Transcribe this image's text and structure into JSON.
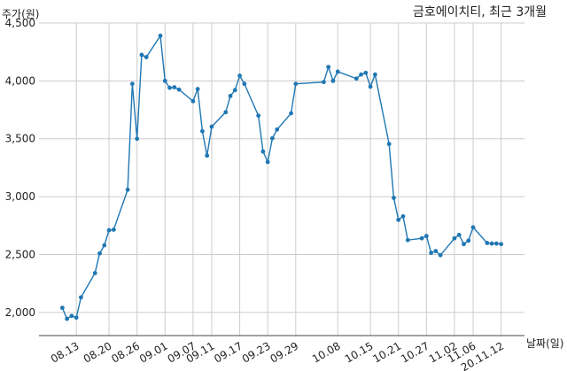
{
  "colors": {
    "line": "#1f77b4",
    "grid": "#cccccc",
    "axis": "#444444",
    "text": "#222222"
  },
  "chart_data": {
    "type": "line",
    "title": "금호에이치티, 최근 3개월",
    "ylabel": "주가(원)",
    "xlabel": "날짜(일)",
    "ylim": [
      1800,
      4500
    ],
    "y_ticks": [
      2000,
      2500,
      3000,
      3500,
      4000,
      4500
    ],
    "y_tick_labels": [
      "2,000",
      "2,500",
      "3,000",
      "3,500",
      "4,000",
      "4,500"
    ],
    "x_ticks": [
      "2020-08-13",
      "2020-08-20",
      "2020-08-26",
      "2020-09-01",
      "2020-09-07",
      "2020-09-11",
      "2020-09-17",
      "2020-09-23",
      "2020-09-29",
      "2020-10-08",
      "2020-10-15",
      "2020-10-21",
      "2020-10-27",
      "2020-11-02",
      "2020-11-06",
      "2020-11-12"
    ],
    "x_tick_labels": [
      "08.13",
      "08.20",
      "08.26",
      "09.01",
      "09.07",
      "09.11",
      "09.17",
      "09.23",
      "09.29",
      "10.08",
      "10.15",
      "10.21",
      "10.27",
      "11.02",
      "11.06",
      "20.11.12"
    ],
    "grid": true,
    "series": [
      {
        "x": [
          "2020-08-10",
          "2020-08-11",
          "2020-08-12",
          "2020-08-13",
          "2020-08-14",
          "2020-08-17",
          "2020-08-18",
          "2020-08-19",
          "2020-08-20",
          "2020-08-21",
          "2020-08-24",
          "2020-08-25",
          "2020-08-26",
          "2020-08-27",
          "2020-08-28",
          "2020-08-31",
          "2020-09-01",
          "2020-09-02",
          "2020-09-03",
          "2020-09-04",
          "2020-09-07",
          "2020-09-08",
          "2020-09-09",
          "2020-09-10",
          "2020-09-11",
          "2020-09-14",
          "2020-09-15",
          "2020-09-16",
          "2020-09-17",
          "2020-09-18",
          "2020-09-21",
          "2020-09-22",
          "2020-09-23",
          "2020-09-24",
          "2020-09-25",
          "2020-09-28",
          "2020-09-29",
          "2020-10-05",
          "2020-10-06",
          "2020-10-07",
          "2020-10-08",
          "2020-10-12",
          "2020-10-13",
          "2020-10-14",
          "2020-10-15",
          "2020-10-16",
          "2020-10-19",
          "2020-10-20",
          "2020-10-21",
          "2020-10-22",
          "2020-10-23",
          "2020-10-26",
          "2020-10-27",
          "2020-10-28",
          "2020-10-29",
          "2020-10-30",
          "2020-11-02",
          "2020-11-03",
          "2020-11-04",
          "2020-11-05",
          "2020-11-06",
          "2020-11-09",
          "2020-11-10",
          "2020-11-11",
          "2020-11-12"
        ],
        "y": [
          2040,
          1945,
          1970,
          1955,
          2130,
          2340,
          2510,
          2580,
          2710,
          2715,
          3060,
          3975,
          3500,
          4225,
          4205,
          4390,
          4000,
          3940,
          3945,
          3925,
          3825,
          3930,
          3565,
          3355,
          3605,
          3730,
          3870,
          3920,
          4045,
          3975,
          3700,
          3390,
          3300,
          3505,
          3580,
          3720,
          3975,
          3990,
          4120,
          4000,
          4080,
          4020,
          4055,
          4070,
          3950,
          4055,
          3455,
          2990,
          2800,
          2830,
          2625,
          2640,
          2660,
          2515,
          2530,
          2495,
          2640,
          2670,
          2590,
          2620,
          2735,
          2600,
          2595,
          2595,
          2590
        ]
      }
    ]
  }
}
